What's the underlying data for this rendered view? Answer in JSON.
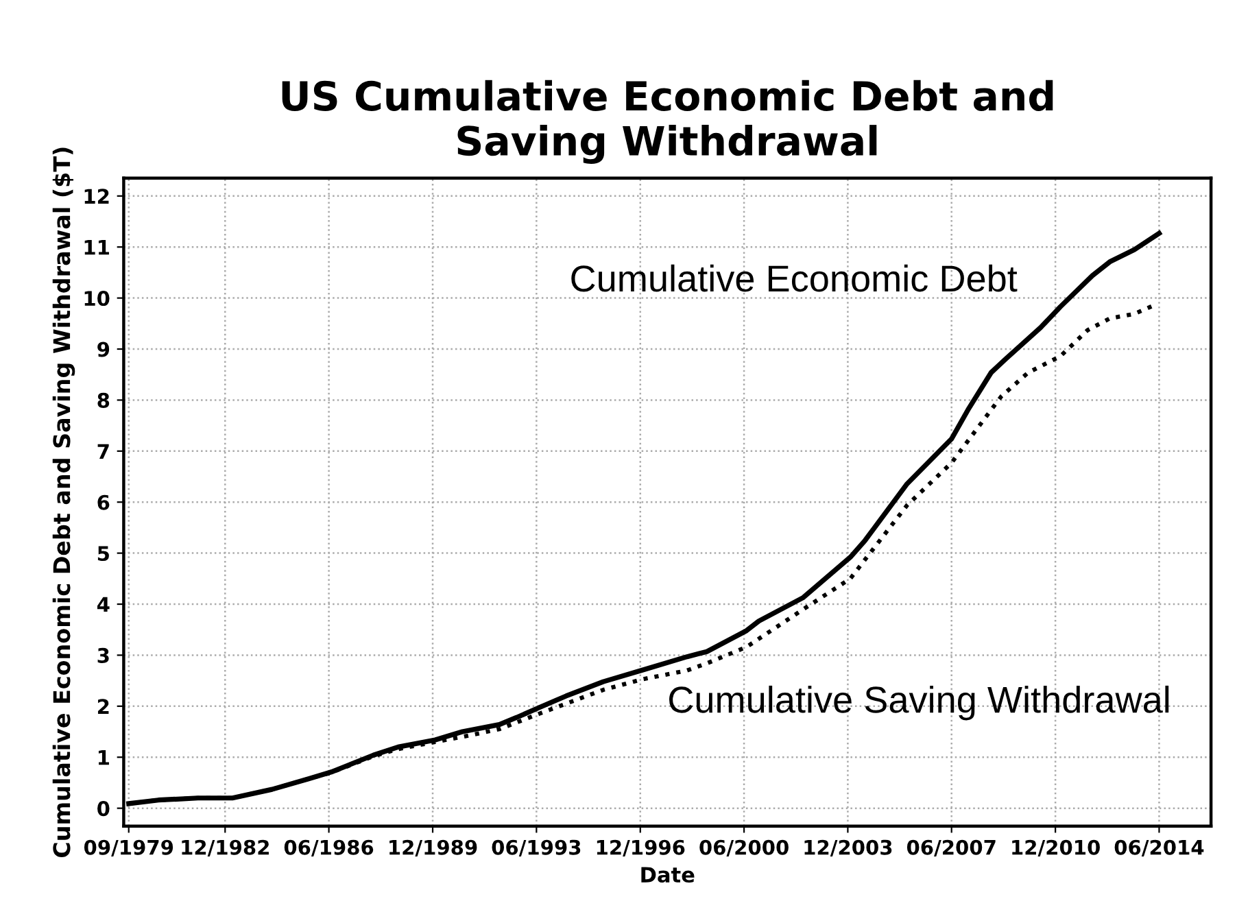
{
  "chart_data": {
    "type": "line",
    "title": "US Cumulative Economic Debt and\nSaving Withdrawal",
    "xlabel": "Date",
    "ylabel": "Cumulative Economic Debt and Saving Withdrawal ($T)",
    "series": [
      {
        "name": "Cumulative Economic Debt",
        "color": "#000000",
        "line_style": "solid",
        "x": [
          "1979-09",
          "1980-09",
          "1982-01",
          "1983-03",
          "1984-07",
          "1985-10",
          "1986-07",
          "1987-12",
          "1988-10",
          "1990-01",
          "1990-12",
          "1992-03",
          "1992-10",
          "1993-07",
          "1994-06",
          "1995-09",
          "1997-01",
          "1998-07",
          "1999-03",
          "2000-07",
          "2000-12",
          "2002-06",
          "2004-01",
          "2004-07",
          "2005-12",
          "2007-06",
          "2008-01",
          "2008-10",
          "2009-04",
          "2010-06",
          "2011-02",
          "2012-03",
          "2012-10",
          "2013-08",
          "2014-06"
        ],
        "values": [
          0.09,
          0.16,
          0.2,
          0.2,
          0.37,
          0.58,
          0.71,
          1.04,
          1.2,
          1.34,
          1.5,
          1.64,
          1.78,
          1.97,
          2.2,
          2.48,
          2.71,
          2.97,
          3.07,
          3.48,
          3.67,
          4.13,
          4.92,
          5.25,
          6.36,
          7.24,
          7.84,
          8.54,
          8.81,
          9.42,
          9.83,
          10.44,
          10.71,
          10.95,
          11.27
        ]
      },
      {
        "name": "Cumulative Saving Withdrawal",
        "color": "#000000",
        "line_style": "dotted",
        "x": [
          "1979-09",
          "1980-09",
          "1982-01",
          "1983-03",
          "1984-07",
          "1985-10",
          "1986-07",
          "1987-12",
          "1988-10",
          "1990-01",
          "1990-12",
          "1992-03",
          "1993-07",
          "1994-06",
          "1995-09",
          "1997-01",
          "1998-07",
          "1999-03",
          "2000-07",
          "2002-06",
          "2004-01",
          "2005-12",
          "2007-06",
          "2009-02",
          "2010-01",
          "2011-02",
          "2012-01",
          "2012-10",
          "2013-08",
          "2014-05"
        ],
        "values": [
          0.09,
          0.16,
          0.2,
          0.2,
          0.37,
          0.58,
          0.7,
          1.02,
          1.16,
          1.3,
          1.4,
          1.55,
          1.85,
          2.05,
          2.32,
          2.53,
          2.7,
          2.84,
          3.16,
          3.9,
          4.5,
          5.94,
          6.77,
          8.07,
          8.54,
          8.86,
          9.37,
          9.6,
          9.69,
          9.88
        ]
      }
    ],
    "xlim": [
      "1979-07",
      "2016-03"
    ],
    "xticks": [
      {
        "value": "1979-09",
        "label": "09/1979"
      },
      {
        "value": "1982-12",
        "label": "12/1982"
      },
      {
        "value": "1986-06",
        "label": "06/1986"
      },
      {
        "value": "1989-12",
        "label": "12/1989"
      },
      {
        "value": "1993-06",
        "label": "06/1993"
      },
      {
        "value": "1996-12",
        "label": "12/1996"
      },
      {
        "value": "2000-06",
        "label": "06/2000"
      },
      {
        "value": "2003-12",
        "label": "12/2003"
      },
      {
        "value": "2007-06",
        "label": "06/2007"
      },
      {
        "value": "2010-12",
        "label": "12/2010"
      },
      {
        "value": "2014-06",
        "label": "06/2014"
      }
    ],
    "ylim": [
      -0.35,
      12.35
    ],
    "yticks": [
      0,
      1,
      2,
      3,
      4,
      5,
      6,
      7,
      8,
      9,
      10,
      11,
      12
    ],
    "grid": true,
    "legend": false,
    "marker": "none"
  }
}
